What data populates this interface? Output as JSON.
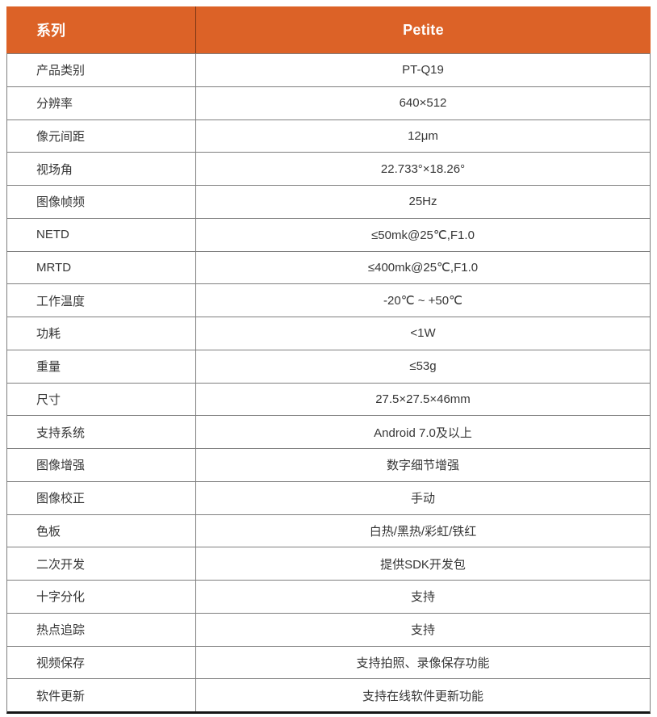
{
  "colors": {
    "accent": "#DC6227",
    "grid": "#7F7F7F",
    "bottom_border": "#151515",
    "header_text": "#FFFFFF",
    "body_text": "#363636"
  },
  "header": {
    "series_label": "系列",
    "model_name": "Petite"
  },
  "rows": [
    {
      "label": "产品类别",
      "value": "PT-Q19"
    },
    {
      "label": "分辨率",
      "value": "640×512"
    },
    {
      "label": "像元间距",
      "value": "12μm"
    },
    {
      "label": "视场角",
      "value": "22.733°×18.26°"
    },
    {
      "label": "图像帧频",
      "value": "25Hz"
    },
    {
      "label": "NETD",
      "value": "≤50mk@25℃,F1.0"
    },
    {
      "label": "MRTD",
      "value": "≤400mk@25℃,F1.0"
    },
    {
      "label": "工作温度",
      "value": "-20℃ ~ +50℃"
    },
    {
      "label": "功耗",
      "value": "<1W"
    },
    {
      "label": "重量",
      "value": "≤53g"
    },
    {
      "label": "尺寸",
      "value": "27.5×27.5×46mm"
    },
    {
      "label": "支持系统",
      "value": "Android 7.0及以上"
    },
    {
      "label": "图像增强",
      "value": "数字细节增强"
    },
    {
      "label": "图像校正",
      "value": "手动"
    },
    {
      "label": "色板",
      "value": "白热/黑热/彩虹/铁红"
    },
    {
      "label": "二次开发",
      "value": "提供SDK开发包"
    },
    {
      "label": "十字分化",
      "value": "支持"
    },
    {
      "label": "热点追踪",
      "value": "支持"
    },
    {
      "label": "视频保存",
      "value": "支持拍照、录像保存功能"
    },
    {
      "label": "软件更新",
      "value": "支持在线软件更新功能"
    }
  ]
}
